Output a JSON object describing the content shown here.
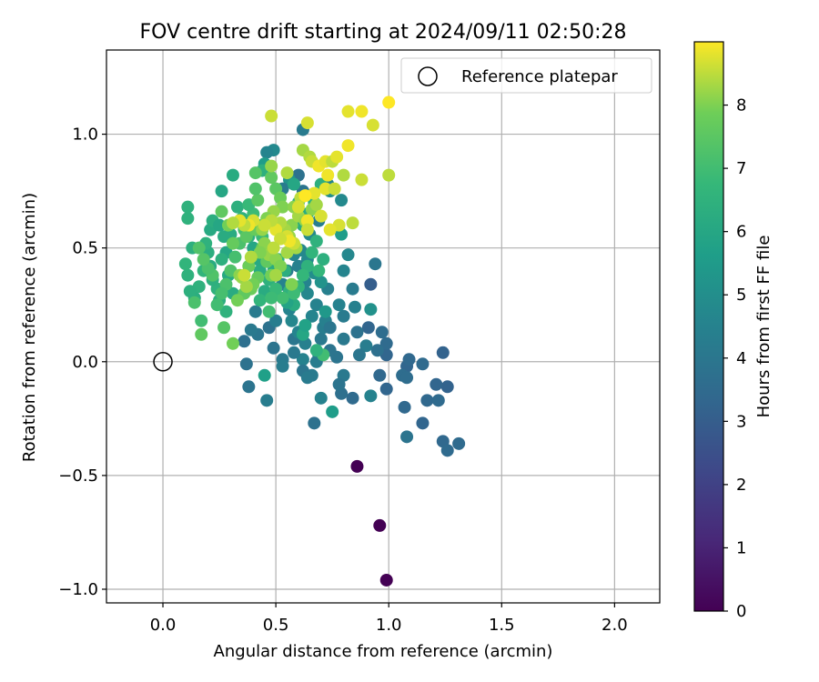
{
  "chart_data": {
    "type": "scatter",
    "title": "FOV centre drift starting at 2024/09/11 02:50:28",
    "xlabel": "Angular distance from reference (arcmin)",
    "ylabel": "Rotation from reference (arcmin)",
    "xlim": [
      -0.25,
      2.2
    ],
    "ylim": [
      -1.06,
      1.37
    ],
    "xticks": [
      0.0,
      0.5,
      1.0,
      1.5,
      2.0
    ],
    "xtick_labels": [
      "0.0",
      "0.5",
      "1.0",
      "1.5",
      "2.0"
    ],
    "yticks": [
      -1.0,
      -0.5,
      0.0,
      0.5,
      1.0
    ],
    "ytick_labels": [
      "−1.0",
      "−0.5",
      "0.0",
      "0.5",
      "1.0"
    ],
    "grid": true,
    "legend": {
      "position": "top-right",
      "entries": [
        "Reference platepar"
      ]
    },
    "reference_point": {
      "x": 0.0,
      "y": 0.0
    },
    "colorbar": {
      "label": "Hours from first FF file",
      "range": [
        0,
        9
      ],
      "ticks": [
        0,
        1,
        2,
        3,
        4,
        5,
        6,
        7,
        8
      ],
      "tick_labels": [
        "0",
        "1",
        "2",
        "3",
        "4",
        "5",
        "6",
        "7",
        "8"
      ],
      "colormap": "viridis"
    },
    "points": [
      [
        0.86,
        -0.46,
        0.0
      ],
      [
        0.96,
        -0.72,
        0.0
      ],
      [
        0.99,
        -0.96,
        0.0
      ],
      [
        1.24,
        0.04,
        3.2
      ],
      [
        1.26,
        -0.11,
        3.2
      ],
      [
        1.21,
        -0.1,
        3.3
      ],
      [
        1.24,
        -0.35,
        3.4
      ],
      [
        1.26,
        -0.39,
        3.5
      ],
      [
        1.31,
        -0.36,
        3.5
      ],
      [
        1.15,
        -0.27,
        3.3
      ],
      [
        1.17,
        -0.17,
        3.4
      ],
      [
        1.22,
        -0.17,
        3.5
      ],
      [
        1.08,
        -0.02,
        3.3
      ],
      [
        1.09,
        0.01,
        3.4
      ],
      [
        1.15,
        -0.01,
        3.5
      ],
      [
        1.06,
        -0.06,
        3.6
      ],
      [
        1.08,
        -0.07,
        3.6
      ],
      [
        1.07,
        -0.2,
        3.4
      ],
      [
        1.08,
        -0.33,
        3.9
      ],
      [
        0.99,
        -0.12,
        3.3
      ],
      [
        0.96,
        -0.06,
        3.4
      ],
      [
        0.99,
        0.03,
        3.3
      ],
      [
        0.99,
        0.08,
        3.5
      ],
      [
        0.91,
        0.15,
        3.3
      ],
      [
        0.97,
        0.13,
        3.6
      ],
      [
        0.92,
        0.34,
        3.0
      ],
      [
        0.94,
        0.43,
        4.0
      ],
      [
        0.95,
        0.05,
        3.7
      ],
      [
        0.9,
        0.07,
        4.3
      ],
      [
        0.86,
        0.13,
        3.8
      ],
      [
        0.87,
        0.03,
        4.0
      ],
      [
        0.84,
        -0.16,
        3.5
      ],
      [
        0.79,
        -0.14,
        3.7
      ],
      [
        0.8,
        -0.06,
        4.1
      ],
      [
        0.78,
        -0.1,
        3.9
      ],
      [
        0.77,
        0.02,
        3.9
      ],
      [
        0.8,
        0.1,
        4.1
      ],
      [
        0.8,
        0.2,
        4.2
      ],
      [
        0.85,
        0.24,
        4.4
      ],
      [
        0.78,
        0.25,
        4.5
      ],
      [
        0.73,
        0.32,
        4.4
      ],
      [
        0.8,
        0.4,
        4.6
      ],
      [
        0.82,
        0.47,
        4.7
      ],
      [
        0.84,
        0.32,
        4.2
      ],
      [
        0.92,
        0.23,
        5.1
      ],
      [
        0.92,
        -0.15,
        4.5
      ],
      [
        0.75,
        -0.22,
        5.6
      ],
      [
        0.7,
        -0.16,
        4.5
      ],
      [
        0.67,
        -0.27,
        3.8
      ],
      [
        0.66,
        -0.06,
        4.2
      ],
      [
        0.68,
        0.0,
        4.3
      ],
      [
        0.69,
        0.03,
        4.2
      ],
      [
        0.7,
        0.1,
        4.1
      ],
      [
        0.71,
        0.15,
        4.3
      ],
      [
        0.72,
        0.18,
        4.4
      ],
      [
        0.68,
        0.25,
        4.5
      ],
      [
        0.66,
        0.2,
        4.6
      ],
      [
        0.64,
        0.3,
        4.7
      ],
      [
        0.64,
        0.45,
        4.8
      ],
      [
        0.67,
        0.39,
        5.0
      ],
      [
        0.7,
        0.35,
        5.2
      ],
      [
        0.72,
        0.22,
        5.4
      ],
      [
        0.74,
        0.15,
        4.0
      ],
      [
        0.74,
        0.05,
        3.9
      ],
      [
        0.63,
        0.08,
        4.4
      ],
      [
        0.62,
        0.01,
        4.5
      ],
      [
        0.62,
        -0.04,
        4.0
      ],
      [
        0.64,
        -0.07,
        4.2
      ],
      [
        0.58,
        0.1,
        4.0
      ],
      [
        0.6,
        0.13,
        4.6
      ],
      [
        0.58,
        0.04,
        4.1
      ],
      [
        0.57,
        0.18,
        4.7
      ],
      [
        0.56,
        0.23,
        4.6
      ],
      [
        0.53,
        0.01,
        4.1
      ],
      [
        0.53,
        -0.02,
        4.3
      ],
      [
        0.49,
        0.06,
        3.9
      ],
      [
        0.47,
        0.15,
        3.8
      ],
      [
        0.46,
        -0.17,
        4.3
      ],
      [
        0.45,
        -0.06,
        5.7
      ],
      [
        0.42,
        0.12,
        4.0
      ],
      [
        0.39,
        0.14,
        4.1
      ],
      [
        0.38,
        -0.11,
        3.9
      ],
      [
        0.37,
        -0.01,
        3.8
      ],
      [
        0.36,
        0.09,
        3.7
      ],
      [
        0.41,
        0.22,
        4.2
      ],
      [
        0.5,
        0.18,
        4.3
      ],
      [
        0.53,
        0.34,
        4.5
      ],
      [
        0.55,
        0.4,
        4.3
      ],
      [
        0.58,
        0.47,
        4.6
      ],
      [
        0.6,
        0.42,
        4.4
      ],
      [
        0.63,
        0.35,
        4.6
      ],
      [
        0.61,
        0.49,
        4.7
      ],
      [
        0.65,
        0.56,
        4.8
      ],
      [
        0.69,
        0.62,
        4.3
      ],
      [
        0.62,
        0.75,
        3.9
      ],
      [
        0.6,
        0.82,
        3.8
      ],
      [
        0.62,
        1.02,
        4.2
      ],
      [
        0.56,
        0.8,
        5.2
      ],
      [
        0.53,
        0.76,
        4.2
      ],
      [
        0.49,
        0.93,
        4.8
      ],
      [
        0.46,
        0.92,
        4.6
      ],
      [
        0.45,
        0.87,
        5.6
      ],
      [
        0.79,
        0.71,
        4.8
      ],
      [
        0.74,
        0.75,
        5.0
      ],
      [
        0.73,
        0.78,
        4.6
      ],
      [
        0.79,
        0.56,
        5.6
      ],
      [
        0.71,
        0.03,
        7.0
      ],
      [
        0.68,
        0.05,
        6.5
      ],
      [
        0.62,
        0.12,
        6.0
      ],
      [
        0.63,
        0.16,
        5.8
      ],
      [
        0.58,
        0.25,
        6.2
      ],
      [
        0.55,
        0.26,
        5.9
      ],
      [
        0.56,
        0.31,
        6.5
      ],
      [
        0.54,
        0.4,
        6.3
      ],
      [
        0.51,
        0.45,
        6.6
      ],
      [
        0.49,
        0.4,
        6.2
      ],
      [
        0.47,
        0.36,
        6.5
      ],
      [
        0.45,
        0.31,
        6.2
      ],
      [
        0.43,
        0.27,
        6.6
      ],
      [
        0.43,
        0.4,
        6.2
      ],
      [
        0.42,
        0.45,
        6.1
      ],
      [
        0.4,
        0.5,
        6.0
      ],
      [
        0.38,
        0.55,
        6.3
      ],
      [
        0.36,
        0.59,
        6.4
      ],
      [
        0.35,
        0.63,
        6.5
      ],
      [
        0.33,
        0.68,
        6.4
      ],
      [
        0.3,
        0.56,
        6.2
      ],
      [
        0.28,
        0.48,
        6.0
      ],
      [
        0.29,
        0.38,
        6.1
      ],
      [
        0.31,
        0.3,
        6.2
      ],
      [
        0.28,
        0.22,
        6.5
      ],
      [
        0.25,
        0.27,
        6.3
      ],
      [
        0.24,
        0.32,
        6.5
      ],
      [
        0.22,
        0.36,
        6.4
      ],
      [
        0.21,
        0.42,
        6.2
      ],
      [
        0.2,
        0.48,
        6.3
      ],
      [
        0.19,
        0.52,
        6.5
      ],
      [
        0.21,
        0.58,
        6.1
      ],
      [
        0.22,
        0.62,
        6.3
      ],
      [
        0.25,
        0.6,
        6.0
      ],
      [
        0.27,
        0.55,
        6.2
      ],
      [
        0.26,
        0.45,
        6.4
      ],
      [
        0.18,
        0.4,
        6.6
      ],
      [
        0.16,
        0.33,
        6.5
      ],
      [
        0.14,
        0.28,
        6.3
      ],
      [
        0.12,
        0.31,
        6.4
      ],
      [
        0.11,
        0.38,
        6.5
      ],
      [
        0.1,
        0.43,
        6.6
      ],
      [
        0.13,
        0.5,
        6.4
      ],
      [
        0.11,
        0.63,
        6.5
      ],
      [
        0.11,
        0.68,
        6.5
      ],
      [
        0.26,
        0.75,
        6.0
      ],
      [
        0.31,
        0.82,
        6.2
      ],
      [
        0.44,
        0.84,
        6.4
      ],
      [
        0.58,
        0.78,
        6.0
      ],
      [
        0.6,
        0.7,
        6.1
      ],
      [
        0.62,
        0.6,
        6.3
      ],
      [
        0.64,
        0.65,
        6.2
      ],
      [
        0.67,
        0.7,
        6.6
      ],
      [
        0.7,
        0.78,
        6.4
      ],
      [
        0.68,
        0.53,
        6.5
      ],
      [
        0.66,
        0.48,
        6.6
      ],
      [
        0.71,
        0.45,
        6.4
      ],
      [
        0.69,
        0.4,
        6.7
      ],
      [
        0.64,
        0.42,
        6.5
      ],
      [
        0.62,
        0.38,
        6.7
      ],
      [
        0.6,
        0.33,
        6.6
      ],
      [
        0.58,
        0.3,
        6.9
      ],
      [
        0.53,
        0.28,
        7.0
      ],
      [
        0.5,
        0.32,
        6.8
      ],
      [
        0.48,
        0.28,
        6.9
      ],
      [
        0.47,
        0.22,
        7.0
      ],
      [
        0.46,
        0.48,
        7.0
      ],
      [
        0.44,
        0.55,
        6.8
      ],
      [
        0.42,
        0.6,
        7.0
      ],
      [
        0.4,
        0.65,
        6.9
      ],
      [
        0.38,
        0.69,
        6.8
      ],
      [
        0.36,
        0.58,
        7.1
      ],
      [
        0.34,
        0.52,
        7.2
      ],
      [
        0.32,
        0.46,
        7.1
      ],
      [
        0.3,
        0.4,
        7.3
      ],
      [
        0.28,
        0.34,
        7.2
      ],
      [
        0.26,
        0.3,
        7.1
      ],
      [
        0.24,
        0.25,
        7.0
      ],
      [
        0.22,
        0.38,
        7.3
      ],
      [
        0.2,
        0.41,
        7.2
      ],
      [
        0.18,
        0.45,
        7.4
      ],
      [
        0.16,
        0.5,
        7.3
      ],
      [
        0.14,
        0.26,
        7.2
      ],
      [
        0.17,
        0.18,
        7.0
      ],
      [
        0.17,
        0.12,
        7.6
      ],
      [
        0.27,
        0.15,
        7.4
      ],
      [
        0.31,
        0.08,
        7.9
      ],
      [
        0.26,
        0.66,
        7.6
      ],
      [
        0.34,
        0.62,
        7.8
      ],
      [
        0.37,
        0.55,
        7.5
      ],
      [
        0.41,
        0.58,
        7.7
      ],
      [
        0.44,
        0.5,
        7.8
      ],
      [
        0.46,
        0.44,
        7.6
      ],
      [
        0.48,
        0.38,
        7.9
      ],
      [
        0.42,
        0.37,
        7.7
      ],
      [
        0.39,
        0.32,
        7.8
      ],
      [
        0.36,
        0.3,
        7.6
      ],
      [
        0.33,
        0.27,
        7.9
      ],
      [
        0.34,
        0.38,
        8.1
      ],
      [
        0.38,
        0.42,
        7.8
      ],
      [
        0.31,
        0.52,
        7.7
      ],
      [
        0.29,
        0.6,
        7.9
      ],
      [
        0.42,
        0.71,
        7.5
      ],
      [
        0.41,
        0.76,
        7.3
      ],
      [
        0.41,
        0.83,
        7.4
      ],
      [
        0.48,
        0.81,
        7.6
      ],
      [
        0.48,
        0.86,
        8.2
      ],
      [
        0.5,
        0.76,
        7.5
      ],
      [
        0.52,
        0.72,
        7.8
      ],
      [
        0.53,
        0.68,
        8.0
      ],
      [
        0.49,
        0.66,
        8.2
      ],
      [
        0.46,
        0.63,
        8.0
      ],
      [
        0.44,
        0.58,
        8.2
      ],
      [
        0.45,
        0.52,
        8.1
      ],
      [
        0.47,
        0.47,
        8.2
      ],
      [
        0.5,
        0.45,
        8.1
      ],
      [
        0.52,
        0.42,
        8.0
      ],
      [
        0.55,
        0.48,
        8.3
      ],
      [
        0.56,
        0.55,
        8.2
      ],
      [
        0.57,
        0.6,
        8.1
      ],
      [
        0.54,
        0.58,
        8.3
      ],
      [
        0.52,
        0.61,
        8.4
      ],
      [
        0.55,
        0.83,
        8.4
      ],
      [
        0.58,
        0.68,
        8.1
      ],
      [
        0.6,
        0.64,
        8.3
      ],
      [
        0.63,
        0.62,
        8.2
      ],
      [
        0.66,
        0.67,
        8.1
      ],
      [
        0.68,
        0.69,
        8.3
      ],
      [
        0.61,
        0.72,
        8.5
      ],
      [
        0.59,
        0.5,
        8.3
      ],
      [
        0.57,
        0.34,
        8.0
      ],
      [
        0.5,
        0.38,
        8.3
      ],
      [
        0.43,
        0.48,
        8.0
      ],
      [
        0.39,
        0.46,
        8.4
      ],
      [
        0.35,
        0.37,
        8.2
      ],
      [
        0.4,
        0.34,
        7.9
      ],
      [
        0.37,
        0.33,
        8.3
      ],
      [
        0.48,
        1.08,
        8.6
      ],
      [
        0.64,
        1.05,
        8.7
      ],
      [
        0.62,
        0.93,
        8.3
      ],
      [
        0.65,
        0.9,
        8.4
      ],
      [
        0.66,
        0.88,
        8.6
      ],
      [
        0.69,
        0.86,
        8.9
      ],
      [
        0.72,
        0.88,
        8.8
      ],
      [
        0.75,
        0.88,
        8.5
      ],
      [
        0.77,
        0.9,
        8.8
      ],
      [
        0.82,
        0.95,
        8.9
      ],
      [
        0.88,
        0.8,
        8.6
      ],
      [
        1.0,
        0.82,
        8.5
      ],
      [
        1.0,
        1.14,
        9.0
      ],
      [
        0.82,
        1.1,
        8.8
      ],
      [
        0.88,
        1.1,
        8.9
      ],
      [
        0.93,
        1.04,
        8.7
      ],
      [
        0.8,
        0.82,
        8.4
      ],
      [
        0.73,
        0.82,
        8.9
      ],
      [
        0.72,
        0.76,
        8.8
      ],
      [
        0.76,
        0.76,
        8.6
      ],
      [
        0.84,
        0.61,
        8.5
      ],
      [
        0.78,
        0.6,
        8.7
      ],
      [
        0.74,
        0.58,
        8.8
      ],
      [
        0.64,
        0.62,
        8.9
      ],
      [
        0.7,
        0.64,
        8.7
      ],
      [
        0.67,
        0.74,
        8.8
      ],
      [
        0.58,
        0.52,
        8.6
      ],
      [
        0.55,
        0.55,
        8.7
      ],
      [
        0.5,
        0.58,
        8.8
      ],
      [
        0.48,
        0.62,
        8.5
      ],
      [
        0.45,
        0.6,
        8.6
      ],
      [
        0.4,
        0.62,
        8.7
      ],
      [
        0.38,
        0.6,
        8.9
      ],
      [
        0.36,
        0.6,
        8.5
      ],
      [
        0.34,
        0.62,
        8.8
      ],
      [
        0.31,
        0.61,
        8.4
      ],
      [
        0.36,
        0.38,
        8.6
      ],
      [
        0.56,
        0.53,
        8.9
      ],
      [
        0.52,
        0.54,
        8.6
      ],
      [
        0.49,
        0.5,
        8.5
      ],
      [
        0.64,
        0.58,
        8.6
      ],
      [
        0.63,
        0.73,
        9.0
      ],
      [
        0.6,
        0.68,
        8.7
      ]
    ]
  }
}
